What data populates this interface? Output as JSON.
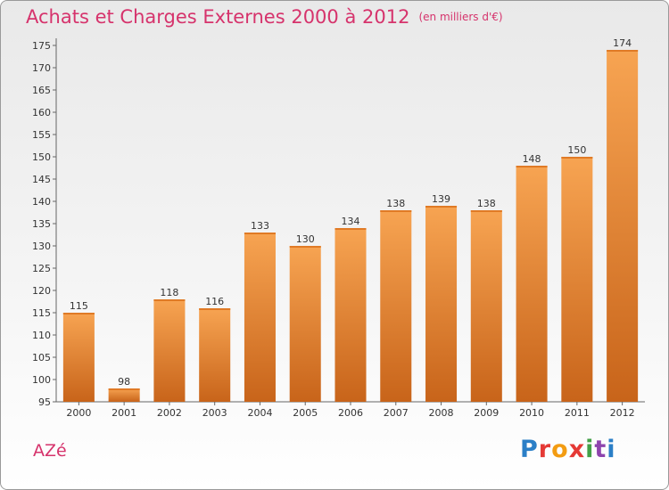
{
  "title": "Achats et Charges Externes 2000 à 2012",
  "subtitle": "(en milliers d'€)",
  "place": "AZé",
  "logo": [
    "P",
    "r",
    "o",
    "x",
    "i",
    "t",
    "i"
  ],
  "colors": {
    "title": "#d6336c",
    "bar_top": "#f7a452",
    "bar_bottom": "#c8641a"
  },
  "chart_data": {
    "type": "bar",
    "categories": [
      "2000",
      "2001",
      "2002",
      "2003",
      "2004",
      "2005",
      "2006",
      "2007",
      "2008",
      "2009",
      "2010",
      "2011",
      "2012"
    ],
    "values": [
      115,
      98,
      118,
      116,
      133,
      130,
      134,
      138,
      139,
      138,
      148,
      150,
      174
    ],
    "ylim": [
      95,
      175
    ],
    "yticks": [
      95,
      100,
      105,
      110,
      115,
      120,
      125,
      130,
      135,
      140,
      145,
      150,
      155,
      160,
      165,
      170,
      175
    ],
    "grid": false,
    "legend": "none"
  }
}
